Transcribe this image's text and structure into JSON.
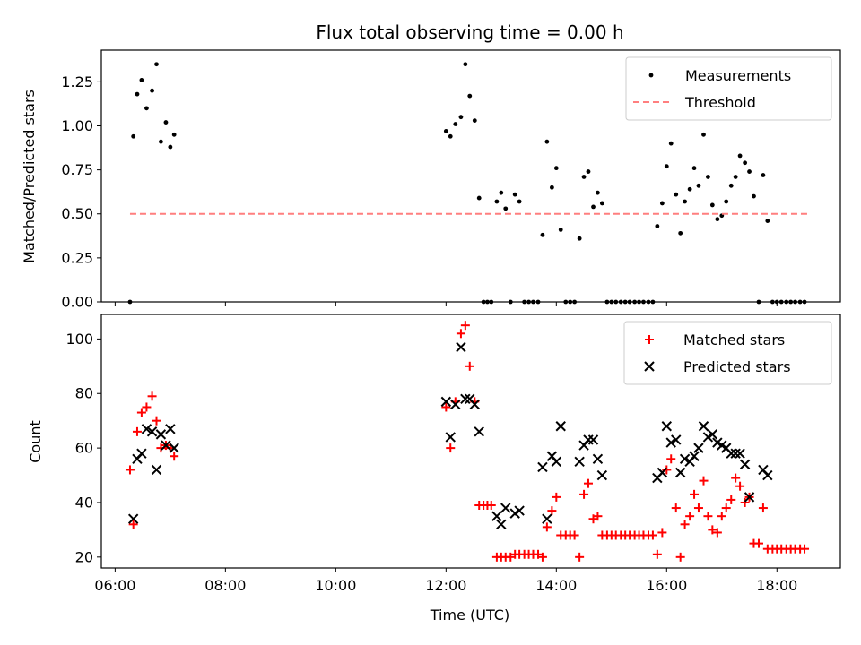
{
  "chart_data": [
    {
      "type": "scatter",
      "title": "Flux total observing time = 0.00 h",
      "xlabel": "",
      "ylabel": "Matched/Predicted stars",
      "xlim": [
        5.75,
        19.15
      ],
      "ylim": [
        0.0,
        1.43
      ],
      "yticks": [
        0.0,
        0.25,
        0.5,
        0.75,
        1.0,
        1.25
      ],
      "ytick_labels": [
        "0.00",
        "0.25",
        "0.50",
        "0.75",
        "1.00",
        "1.25"
      ],
      "xticks": [
        6,
        8,
        10,
        12,
        14,
        16,
        18
      ],
      "legend_position": "top-right",
      "series": [
        {
          "name": "Measurements",
          "marker": "dot",
          "color": "#000000",
          "points": [
            [
              6.27,
              0.0
            ],
            [
              6.33,
              0.94
            ],
            [
              6.4,
              1.18
            ],
            [
              6.48,
              1.26
            ],
            [
              6.57,
              1.1
            ],
            [
              6.67,
              1.2
            ],
            [
              6.75,
              1.35
            ],
            [
              6.83,
              0.91
            ],
            [
              6.92,
              1.02
            ],
            [
              7.0,
              0.88
            ],
            [
              7.07,
              0.95
            ],
            [
              12.0,
              0.97
            ],
            [
              12.08,
              0.94
            ],
            [
              12.17,
              1.01
            ],
            [
              12.27,
              1.05
            ],
            [
              12.35,
              1.35
            ],
            [
              12.43,
              1.17
            ],
            [
              12.52,
              1.03
            ],
            [
              12.6,
              0.59
            ],
            [
              12.68,
              0.0
            ],
            [
              12.75,
              0.0
            ],
            [
              12.82,
              0.0
            ],
            [
              12.92,
              0.57
            ],
            [
              13.0,
              0.62
            ],
            [
              13.08,
              0.53
            ],
            [
              13.17,
              0.0
            ],
            [
              13.25,
              0.61
            ],
            [
              13.33,
              0.57
            ],
            [
              13.42,
              0.0
            ],
            [
              13.5,
              0.0
            ],
            [
              13.58,
              0.0
            ],
            [
              13.67,
              0.0
            ],
            [
              13.75,
              0.38
            ],
            [
              13.83,
              0.91
            ],
            [
              13.92,
              0.65
            ],
            [
              14.0,
              0.76
            ],
            [
              14.08,
              0.41
            ],
            [
              14.17,
              0.0
            ],
            [
              14.25,
              0.0
            ],
            [
              14.33,
              0.0
            ],
            [
              14.42,
              0.36
            ],
            [
              14.5,
              0.71
            ],
            [
              14.58,
              0.74
            ],
            [
              14.67,
              0.54
            ],
            [
              14.75,
              0.62
            ],
            [
              14.83,
              0.56
            ],
            [
              14.92,
              0.0
            ],
            [
              15.0,
              0.0
            ],
            [
              15.08,
              0.0
            ],
            [
              15.17,
              0.0
            ],
            [
              15.25,
              0.0
            ],
            [
              15.33,
              0.0
            ],
            [
              15.42,
              0.0
            ],
            [
              15.5,
              0.0
            ],
            [
              15.58,
              0.0
            ],
            [
              15.67,
              0.0
            ],
            [
              15.75,
              0.0
            ],
            [
              15.83,
              0.43
            ],
            [
              15.92,
              0.56
            ],
            [
              16.0,
              0.77
            ],
            [
              16.08,
              0.9
            ],
            [
              16.17,
              0.61
            ],
            [
              16.25,
              0.39
            ],
            [
              16.33,
              0.57
            ],
            [
              16.42,
              0.64
            ],
            [
              16.5,
              0.76
            ],
            [
              16.58,
              0.66
            ],
            [
              16.67,
              0.95
            ],
            [
              16.75,
              0.71
            ],
            [
              16.83,
              0.55
            ],
            [
              16.92,
              0.47
            ],
            [
              17.0,
              0.49
            ],
            [
              17.08,
              0.57
            ],
            [
              17.17,
              0.66
            ],
            [
              17.25,
              0.71
            ],
            [
              17.33,
              0.83
            ],
            [
              17.42,
              0.79
            ],
            [
              17.5,
              0.74
            ],
            [
              17.58,
              0.6
            ],
            [
              17.67,
              0.0
            ],
            [
              17.75,
              0.72
            ],
            [
              17.83,
              0.46
            ],
            [
              17.92,
              0.0
            ],
            [
              18.0,
              0.0
            ],
            [
              18.08,
              0.0
            ],
            [
              18.17,
              0.0
            ],
            [
              18.25,
              0.0
            ],
            [
              18.33,
              0.0
            ],
            [
              18.42,
              0.0
            ],
            [
              18.5,
              0.0
            ]
          ]
        },
        {
          "name": "Threshold",
          "type": "dashed-line",
          "color": "#ff7f7f",
          "points": [
            [
              6.27,
              0.5
            ],
            [
              18.55,
              0.5
            ]
          ]
        }
      ]
    },
    {
      "type": "scatter",
      "title": "",
      "xlabel": "Time (UTC)",
      "ylabel": "Count",
      "xlim": [
        5.75,
        19.15
      ],
      "ylim": [
        16,
        109
      ],
      "yticks": [
        20,
        40,
        60,
        80,
        100
      ],
      "ytick_labels": [
        "20",
        "40",
        "60",
        "80",
        "100"
      ],
      "xticks": [
        6,
        8,
        10,
        12,
        14,
        16,
        18
      ],
      "xtick_labels": [
        "06:00",
        "08:00",
        "10:00",
        "12:00",
        "14:00",
        "16:00",
        "18:00"
      ],
      "legend_position": "top-right",
      "series": [
        {
          "name": "Matched stars",
          "marker": "plus",
          "color": "#ff0000",
          "points": [
            [
              6.27,
              52
            ],
            [
              6.33,
              32
            ],
            [
              6.4,
              66
            ],
            [
              6.48,
              73
            ],
            [
              6.57,
              75
            ],
            [
              6.67,
              79
            ],
            [
              6.75,
              70
            ],
            [
              6.83,
              60
            ],
            [
              6.92,
              61
            ],
            [
              7.0,
              60
            ],
            [
              7.07,
              57
            ],
            [
              12.0,
              75
            ],
            [
              12.08,
              60
            ],
            [
              12.17,
              77
            ],
            [
              12.27,
              102
            ],
            [
              12.35,
              105
            ],
            [
              12.43,
              90
            ],
            [
              12.52,
              77
            ],
            [
              12.6,
              39
            ],
            [
              12.68,
              39
            ],
            [
              12.75,
              39
            ],
            [
              12.82,
              39
            ],
            [
              12.92,
              20
            ],
            [
              13.0,
              20
            ],
            [
              13.08,
              20
            ],
            [
              13.17,
              20
            ],
            [
              13.25,
              21
            ],
            [
              13.33,
              21
            ],
            [
              13.42,
              21
            ],
            [
              13.5,
              21
            ],
            [
              13.58,
              21
            ],
            [
              13.67,
              21
            ],
            [
              13.75,
              20
            ],
            [
              13.83,
              31
            ],
            [
              13.92,
              37
            ],
            [
              14.0,
              42
            ],
            [
              14.08,
              28
            ],
            [
              14.17,
              28
            ],
            [
              14.25,
              28
            ],
            [
              14.33,
              28
            ],
            [
              14.42,
              20
            ],
            [
              14.5,
              43
            ],
            [
              14.58,
              47
            ],
            [
              14.67,
              34
            ],
            [
              14.75,
              35
            ],
            [
              14.83,
              28
            ],
            [
              14.92,
              28
            ],
            [
              15.0,
              28
            ],
            [
              15.08,
              28
            ],
            [
              15.17,
              28
            ],
            [
              15.25,
              28
            ],
            [
              15.33,
              28
            ],
            [
              15.42,
              28
            ],
            [
              15.5,
              28
            ],
            [
              15.58,
              28
            ],
            [
              15.67,
              28
            ],
            [
              15.75,
              28
            ],
            [
              15.83,
              21
            ],
            [
              15.92,
              29
            ],
            [
              16.0,
              52
            ],
            [
              16.08,
              56
            ],
            [
              16.17,
              38
            ],
            [
              16.25,
              20
            ],
            [
              16.33,
              32
            ],
            [
              16.42,
              35
            ],
            [
              16.5,
              43
            ],
            [
              16.58,
              38
            ],
            [
              16.67,
              48
            ],
            [
              16.75,
              35
            ],
            [
              16.83,
              30
            ],
            [
              16.92,
              29
            ],
            [
              17.0,
              35
            ],
            [
              17.08,
              38
            ],
            [
              17.17,
              41
            ],
            [
              17.25,
              49
            ],
            [
              17.33,
              46
            ],
            [
              17.42,
              40
            ],
            [
              17.5,
              42
            ],
            [
              17.58,
              25
            ],
            [
              17.67,
              25
            ],
            [
              17.75,
              38
            ],
            [
              17.83,
              23
            ],
            [
              17.92,
              23
            ],
            [
              18.0,
              23
            ],
            [
              18.08,
              23
            ],
            [
              18.17,
              23
            ],
            [
              18.25,
              23
            ],
            [
              18.33,
              23
            ],
            [
              18.42,
              23
            ],
            [
              18.5,
              23
            ]
          ]
        },
        {
          "name": "Predicted stars",
          "marker": "x",
          "color": "#000000",
          "points": [
            [
              6.33,
              34
            ],
            [
              6.4,
              56
            ],
            [
              6.48,
              58
            ],
            [
              6.57,
              67
            ],
            [
              6.67,
              66
            ],
            [
              6.75,
              52
            ],
            [
              6.83,
              65
            ],
            [
              6.92,
              61
            ],
            [
              7.0,
              67
            ],
            [
              7.07,
              60
            ],
            [
              12.0,
              77
            ],
            [
              12.08,
              64
            ],
            [
              12.17,
              76
            ],
            [
              12.27,
              97
            ],
            [
              12.35,
              78
            ],
            [
              12.43,
              78
            ],
            [
              12.52,
              76
            ],
            [
              12.6,
              66
            ],
            [
              12.92,
              35
            ],
            [
              13.0,
              32
            ],
            [
              13.08,
              38
            ],
            [
              13.25,
              36
            ],
            [
              13.33,
              37
            ],
            [
              13.75,
              53
            ],
            [
              13.83,
              34
            ],
            [
              13.92,
              57
            ],
            [
              14.0,
              55
            ],
            [
              14.08,
              68
            ],
            [
              14.42,
              55
            ],
            [
              14.5,
              61
            ],
            [
              14.58,
              63
            ],
            [
              14.67,
              63
            ],
            [
              14.75,
              56
            ],
            [
              14.83,
              50
            ],
            [
              15.83,
              49
            ],
            [
              15.92,
              51
            ],
            [
              16.0,
              68
            ],
            [
              16.08,
              62
            ],
            [
              16.17,
              63
            ],
            [
              16.25,
              51
            ],
            [
              16.33,
              56
            ],
            [
              16.42,
              55
            ],
            [
              16.5,
              57
            ],
            [
              16.58,
              60
            ],
            [
              16.67,
              68
            ],
            [
              16.75,
              64
            ],
            [
              16.83,
              65
            ],
            [
              16.92,
              62
            ],
            [
              17.0,
              61
            ],
            [
              17.08,
              60
            ],
            [
              17.17,
              58
            ],
            [
              17.25,
              58
            ],
            [
              17.33,
              58
            ],
            [
              17.42,
              54
            ],
            [
              17.5,
              42
            ],
            [
              17.75,
              52
            ],
            [
              17.83,
              50
            ]
          ]
        }
      ]
    }
  ]
}
